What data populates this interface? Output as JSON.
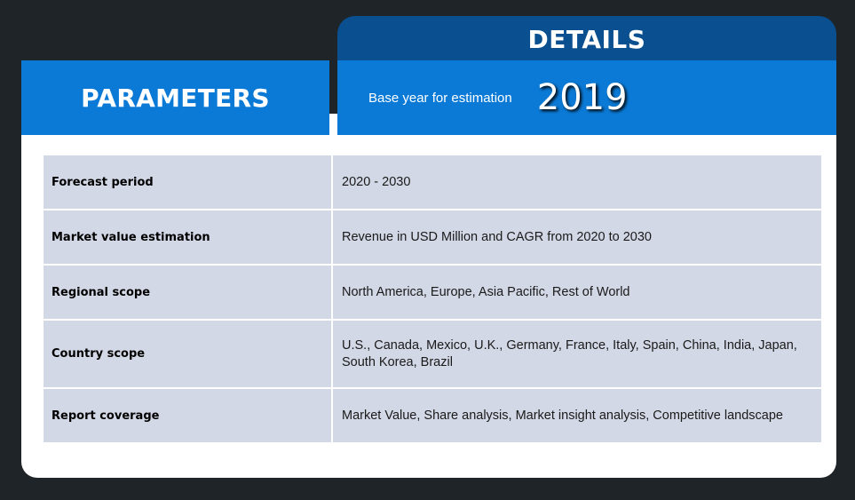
{
  "header": {
    "details_title": "DETAILS",
    "parameters_title": "PARAMETERS",
    "base_year_label": "Base year for estimation",
    "base_year_value": "2019"
  },
  "rows": [
    {
      "parameter": "Forecast period",
      "detail": "2020 - 2030"
    },
    {
      "parameter": "Market value estimation",
      "detail": "Revenue in USD Million and CAGR from 2020  to 2030"
    },
    {
      "parameter": "Regional scope",
      "detail": "North America,  Europe, Asia Pacific,  Rest of World"
    },
    {
      "parameter": "Country scope",
      "detail": "U.S., Canada,  Mexico, U.K.,  Germany,  France,  Italy, Spain, China, India,  Japan, South Korea,   Brazil"
    },
    {
      "parameter": "Report coverage",
      "detail": "Market Value, Share analysis, Market insight analysis,  Competitive landscape"
    }
  ],
  "colors": {
    "background": "#1f2428",
    "dark_blue": "#0a4f8f",
    "blue": "#0b7ad6",
    "row_bg": "#d3d8e6"
  }
}
